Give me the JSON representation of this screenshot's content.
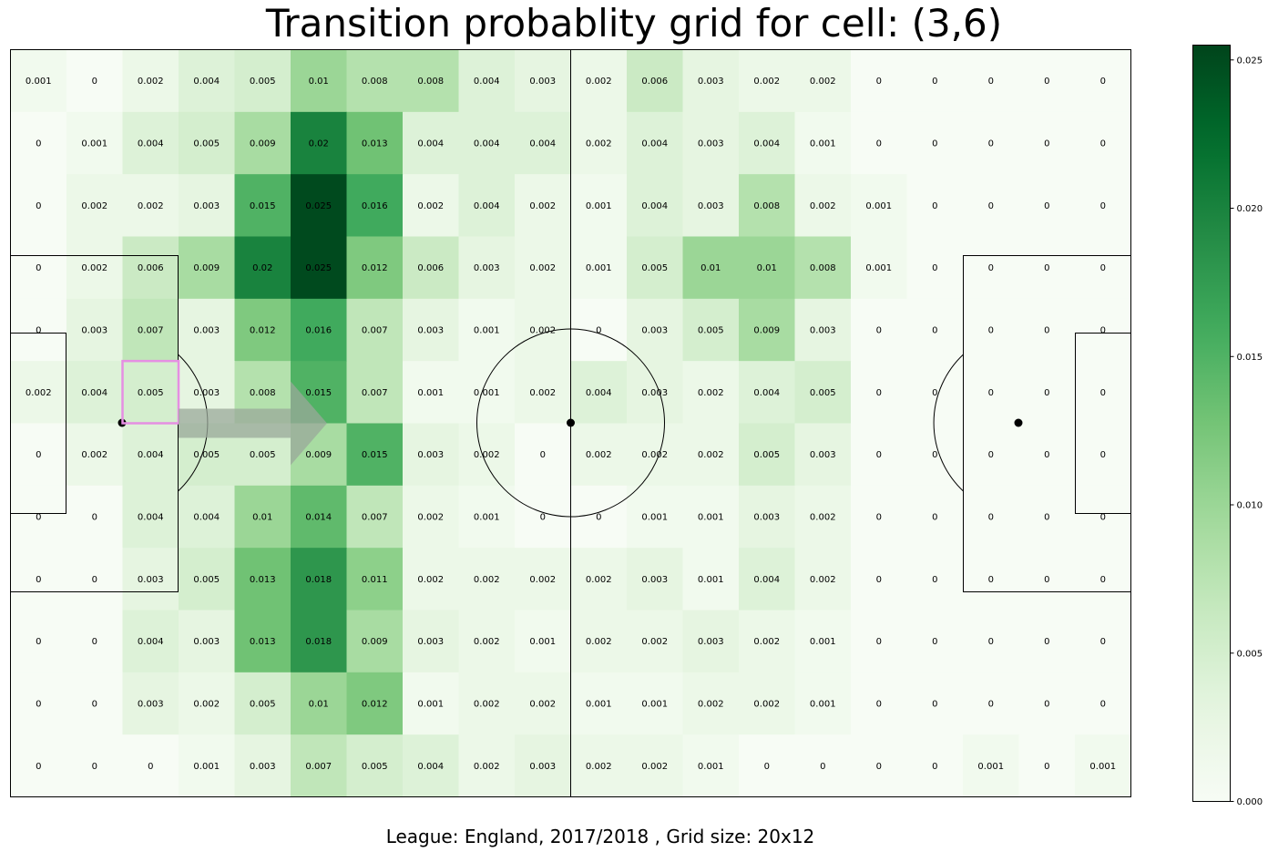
{
  "title": "Transition probablity grid for cell: (3,6)",
  "caption": "League: England, 2017/2018 , Grid size: 20x12",
  "chart_data": {
    "type": "heatmap",
    "title": "Transition probablity grid for cell: (3,6)",
    "grid_cols": 20,
    "grid_rows": 12,
    "colormap": "Greens",
    "vmin": 0.0,
    "vmax": 0.0255,
    "colorbar_ticks": [
      "0.000",
      "0.005",
      "0.010",
      "0.015",
      "0.020",
      "0.025"
    ],
    "selected_cell": {
      "col": 3,
      "row": 6,
      "color": "#e58fe2"
    },
    "arrow_color": "#9aa89a",
    "values": [
      [
        0.001,
        0.0,
        0.002,
        0.004,
        0.005,
        0.01,
        0.008,
        0.008,
        0.004,
        0.003,
        0.002,
        0.006,
        0.003,
        0.002,
        0.002,
        0.0,
        0.0,
        0.0,
        0.0,
        0.0
      ],
      [
        0.0,
        0.001,
        0.004,
        0.005,
        0.009,
        0.02,
        0.013,
        0.004,
        0.004,
        0.004,
        0.002,
        0.004,
        0.003,
        0.004,
        0.001,
        0.0,
        0.0,
        0.0,
        0.0,
        0.0
      ],
      [
        0.0,
        0.002,
        0.002,
        0.003,
        0.015,
        0.025,
        0.016,
        0.002,
        0.004,
        0.002,
        0.001,
        0.004,
        0.003,
        0.008,
        0.002,
        0.001,
        0.0,
        0.0,
        0.0,
        0.0
      ],
      [
        0.0,
        0.002,
        0.006,
        0.009,
        0.02,
        0.025,
        0.012,
        0.006,
        0.003,
        0.002,
        0.001,
        0.005,
        0.01,
        0.01,
        0.008,
        0.001,
        0.0,
        0.0,
        0.0,
        0.0
      ],
      [
        0.0,
        0.003,
        0.007,
        0.003,
        0.012,
        0.016,
        0.007,
        0.003,
        0.001,
        0.002,
        0.0,
        0.003,
        0.005,
        0.009,
        0.003,
        0.0,
        0.0,
        0.0,
        0.0,
        0.0
      ],
      [
        0.002,
        0.004,
        0.005,
        0.003,
        0.008,
        0.015,
        0.007,
        0.001,
        0.001,
        0.002,
        0.004,
        0.003,
        0.002,
        0.004,
        0.005,
        0.0,
        0.0,
        0.0,
        0.0,
        0.0
      ],
      [
        0.0,
        0.002,
        0.004,
        0.005,
        0.005,
        0.009,
        0.015,
        0.003,
        0.002,
        0.0,
        0.002,
        0.002,
        0.002,
        0.005,
        0.003,
        0.0,
        0.0,
        0.0,
        0.0,
        0.0
      ],
      [
        0.0,
        0.0,
        0.004,
        0.004,
        0.01,
        0.014,
        0.007,
        0.002,
        0.001,
        0.0,
        0.0,
        0.001,
        0.001,
        0.003,
        0.002,
        0.0,
        0.0,
        0.0,
        0.0,
        0.0
      ],
      [
        0.0,
        0.0,
        0.003,
        0.005,
        0.013,
        0.018,
        0.011,
        0.002,
        0.002,
        0.002,
        0.002,
        0.003,
        0.001,
        0.004,
        0.002,
        0.0,
        0.0,
        0.0,
        0.0,
        0.0
      ],
      [
        0.0,
        0.0,
        0.004,
        0.003,
        0.013,
        0.018,
        0.009,
        0.003,
        0.002,
        0.001,
        0.002,
        0.002,
        0.003,
        0.002,
        0.001,
        0.0,
        0.0,
        0.0,
        0.0,
        0.0
      ],
      [
        0.0,
        0.0,
        0.003,
        0.002,
        0.005,
        0.01,
        0.012,
        0.001,
        0.002,
        0.002,
        0.001,
        0.001,
        0.002,
        0.002,
        0.001,
        0.0,
        0.0,
        0.0,
        0.0,
        0.0
      ],
      [
        0.0,
        0.0,
        0.0,
        0.001,
        0.003,
        0.007,
        0.005,
        0.004,
        0.002,
        0.003,
        0.002,
        0.002,
        0.001,
        0.0,
        0.0,
        0.0,
        0.0,
        0.001,
        0.0,
        0.001
      ]
    ]
  }
}
